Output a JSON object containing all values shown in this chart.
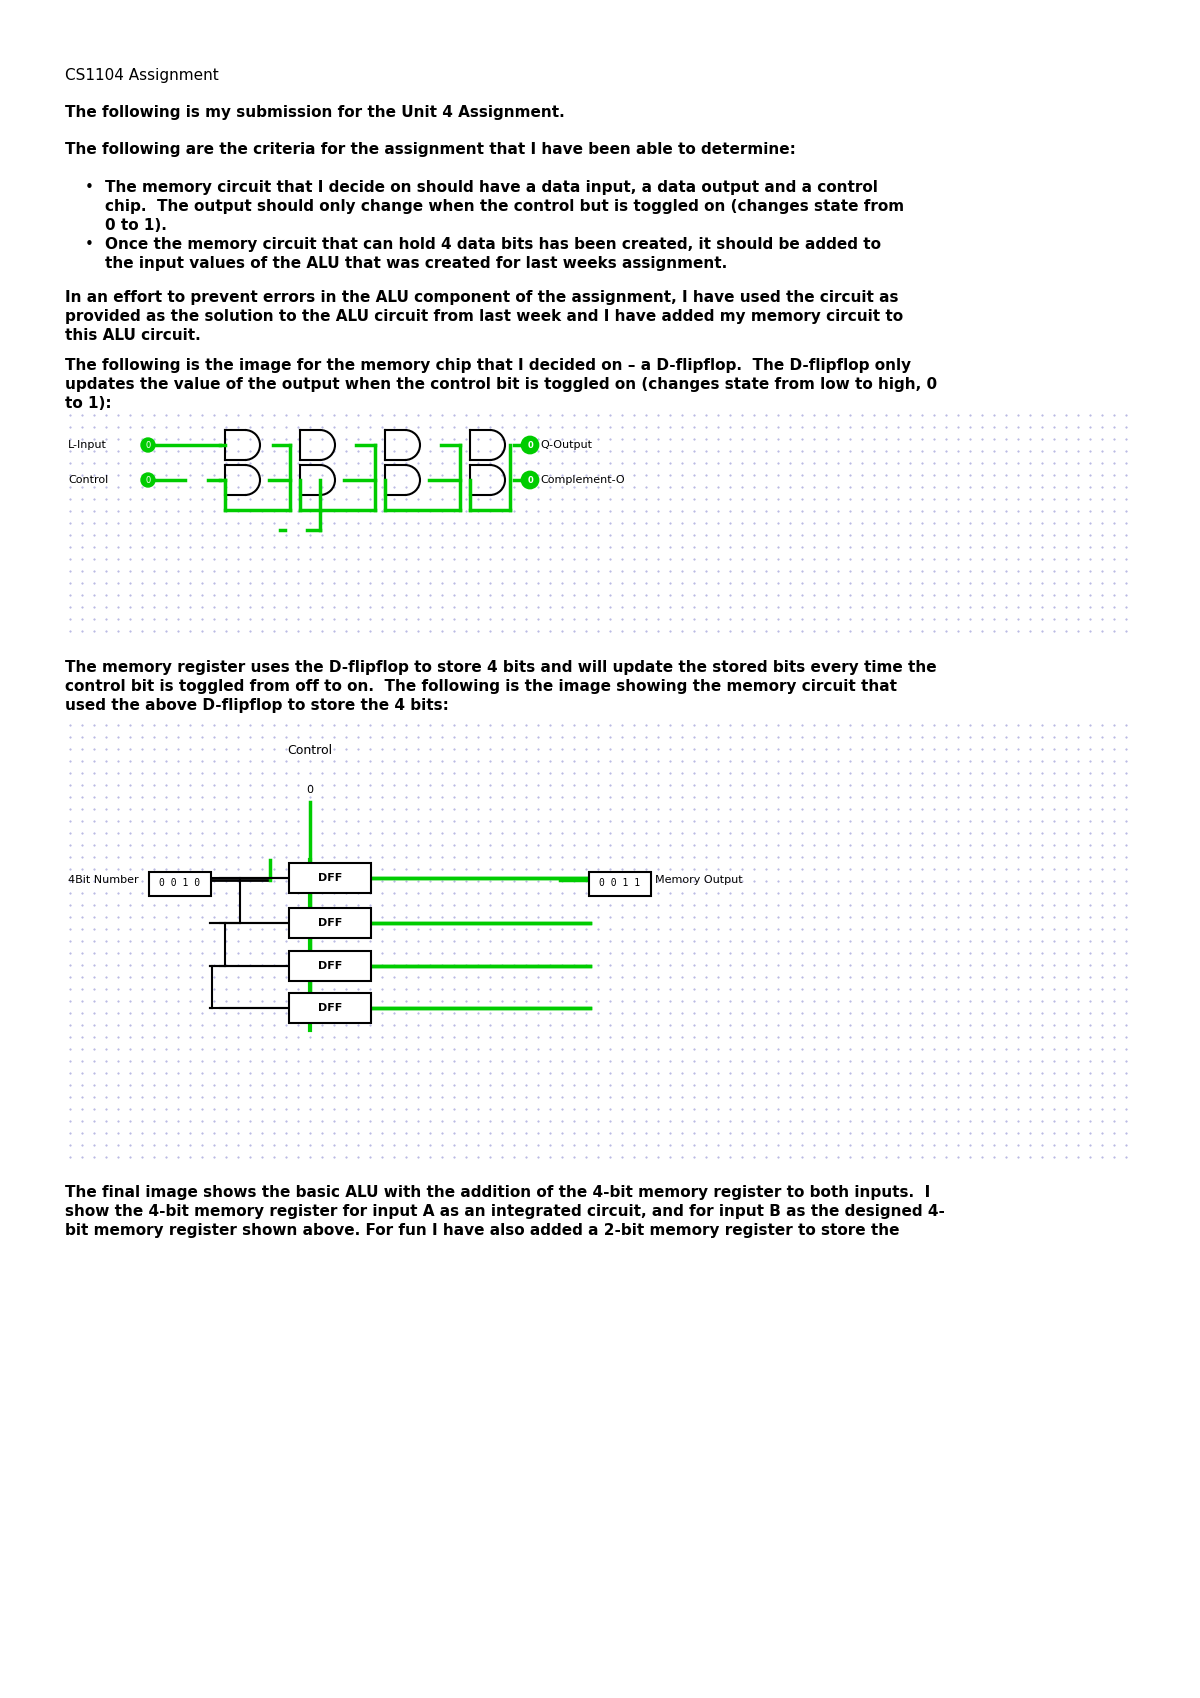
{
  "title": "CS1104 Assignment",
  "para1": "The following is my submission for the Unit 4 Assignment.",
  "para2": "The following are the criteria for the assignment that I have been able to determine:",
  "bullet1_line1": "The memory circuit that I decide on should have a data input, a data output and a control",
  "bullet1_line2": "chip.  The output should only change when the control but is toggled on (changes state from",
  "bullet1_line3": "0 to 1).",
  "bullet2_line1": "Once the memory circuit that can hold 4 data bits has been created, it should be added to",
  "bullet2_line2": "the input values of the ALU that was created for last weeks assignment.",
  "para3_line1": "In an effort to prevent errors in the ALU component of the assignment, I have used the circuit as",
  "para3_line2": "provided as the solution to the ALU circuit from last week and I have added my memory circuit to",
  "para3_line3": "this ALU circuit.",
  "para4_line1": "The following is the image for the memory chip that I decided on – a D-flipflop.  The D-flipflop only",
  "para4_line2": "updates the value of the output when the control bit is toggled on (changes state from low to high, 0",
  "para4_line3": "to 1):",
  "para5_line1": "The memory register uses the D-flipflop to store 4 bits and will update the stored bits every time the",
  "para5_line2": "control bit is toggled from off to on.  The following is the image showing the memory circuit that",
  "para5_line3": "used the above D-flipflop to store the 4 bits:",
  "para6_line1": "The final image shows the basic ALU with the addition of the 4-bit memory register to both inputs.  I",
  "para6_line2": "show the 4-bit memory register for input A as an integrated circuit, and for input B as the designed 4-",
  "para6_line3": "bit memory register shown above. For fun I have also added a 2-bit memory register to store the",
  "bg_color": "#ffffff",
  "text_color": "#000000",
  "font_family": "monospace",
  "circuit_green": "#00aa00",
  "circuit_bg": "#f8f8f8"
}
